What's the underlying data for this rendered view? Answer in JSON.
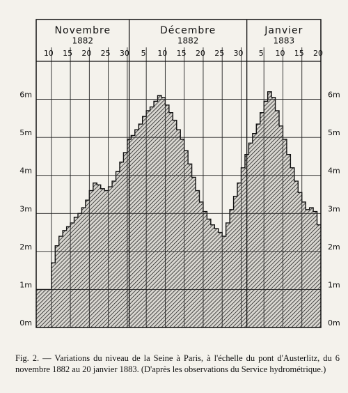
{
  "chart_data": {
    "type": "step-area",
    "months": [
      {
        "name": "Novembre",
        "year": "1882"
      },
      {
        "name": "Décembre",
        "year": "1882"
      },
      {
        "name": "Janvier",
        "year": "1883"
      }
    ],
    "values": [
      1.0,
      1.0,
      1.0,
      1.0,
      1.7,
      2.15,
      2.4,
      2.55,
      2.65,
      2.75,
      2.9,
      3.0,
      3.15,
      3.35,
      3.6,
      3.8,
      3.75,
      3.65,
      3.6,
      3.7,
      3.85,
      4.1,
      4.35,
      4.6,
      4.95,
      5.05,
      5.2,
      5.35,
      5.55,
      5.7,
      5.8,
      5.95,
      6.1,
      6.05,
      5.85,
      5.65,
      5.45,
      5.2,
      4.95,
      4.65,
      4.3,
      3.95,
      3.6,
      3.3,
      3.05,
      2.85,
      2.7,
      2.6,
      2.5,
      2.4,
      2.75,
      3.1,
      3.45,
      3.8,
      4.2,
      4.55,
      4.85,
      5.1,
      5.35,
      5.65,
      5.95,
      6.2,
      6.05,
      5.7,
      5.3,
      4.95,
      4.55,
      4.2,
      3.85,
      3.55,
      3.3,
      3.1,
      3.15,
      3.05,
      2.7
    ],
    "xlim": [
      0,
      75
    ],
    "xticks": [
      {
        "value": 4,
        "label": "10"
      },
      {
        "value": 9,
        "label": "15"
      },
      {
        "value": 14,
        "label": "20"
      },
      {
        "value": 19,
        "label": "25"
      },
      {
        "value": 24,
        "label": "30"
      },
      {
        "value": 29,
        "label": "5"
      },
      {
        "value": 34,
        "label": "10"
      },
      {
        "value": 39,
        "label": "15"
      },
      {
        "value": 44,
        "label": "20"
      },
      {
        "value": 49,
        "label": "25"
      },
      {
        "value": 54,
        "label": "30"
      },
      {
        "value": 60,
        "label": "5"
      },
      {
        "value": 65,
        "label": "10"
      },
      {
        "value": 70,
        "label": "15"
      },
      {
        "value": 75,
        "label": "20"
      }
    ],
    "month_breaks": [
      24.5,
      55.5
    ],
    "ylim": [
      0,
      7
    ],
    "yticks": [
      {
        "value": 0,
        "label": "0m"
      },
      {
        "value": 1,
        "label": "1m"
      },
      {
        "value": 2,
        "label": "2m"
      },
      {
        "value": 3,
        "label": "3m"
      },
      {
        "value": 4,
        "label": "4m"
      },
      {
        "value": 5,
        "label": "5m"
      },
      {
        "value": 6,
        "label": "6m"
      }
    ],
    "caption": "Fig. 2. — Variations du niveau de la Seine à Paris, à l'échelle du pont d'Austerlitz, du 6 novembre 1882 au 20 janvier 1883. (D'après les observations du Service hydrométrique.)"
  }
}
